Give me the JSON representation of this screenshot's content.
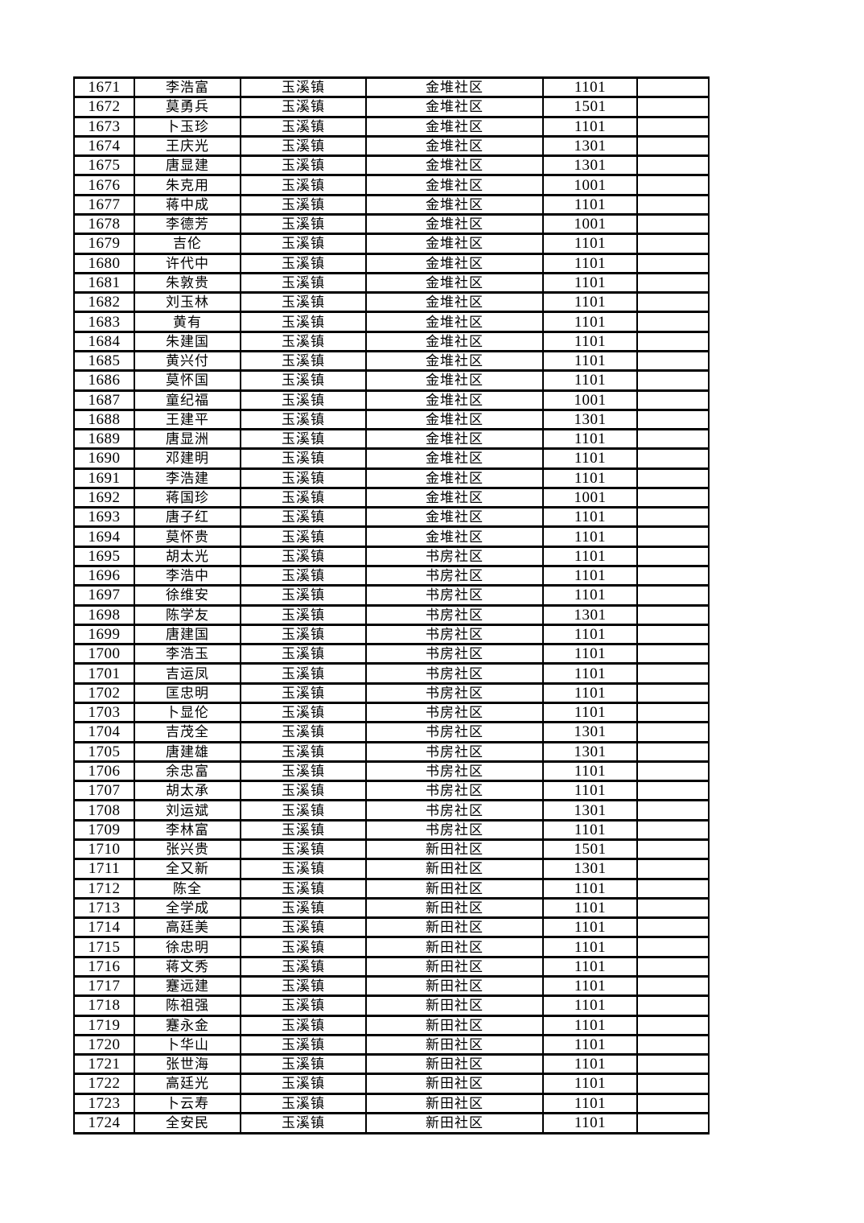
{
  "page": {
    "background_color": "#ffffff",
    "text_color": "#000000"
  },
  "table": {
    "rows": [
      [
        "1671",
        "李浩富",
        "玉溪镇",
        "金堆社区",
        "1101",
        ""
      ],
      [
        "1672",
        "莫勇兵",
        "玉溪镇",
        "金堆社区",
        "1501",
        ""
      ],
      [
        "1673",
        "卜玉珍",
        "玉溪镇",
        "金堆社区",
        "1101",
        ""
      ],
      [
        "1674",
        "王庆光",
        "玉溪镇",
        "金堆社区",
        "1301",
        ""
      ],
      [
        "1675",
        "唐显建",
        "玉溪镇",
        "金堆社区",
        "1301",
        ""
      ],
      [
        "1676",
        "朱克用",
        "玉溪镇",
        "金堆社区",
        "1001",
        ""
      ],
      [
        "1677",
        "蒋中成",
        "玉溪镇",
        "金堆社区",
        "1101",
        ""
      ],
      [
        "1678",
        "李德芳",
        "玉溪镇",
        "金堆社区",
        "1001",
        ""
      ],
      [
        "1679",
        "吉伦",
        "玉溪镇",
        "金堆社区",
        "1101",
        ""
      ],
      [
        "1680",
        "许代中",
        "玉溪镇",
        "金堆社区",
        "1101",
        ""
      ],
      [
        "1681",
        "朱敦贵",
        "玉溪镇",
        "金堆社区",
        "1101",
        ""
      ],
      [
        "1682",
        "刘玉林",
        "玉溪镇",
        "金堆社区",
        "1101",
        ""
      ],
      [
        "1683",
        "黄有",
        "玉溪镇",
        "金堆社区",
        "1101",
        ""
      ],
      [
        "1684",
        "朱建国",
        "玉溪镇",
        "金堆社区",
        "1101",
        ""
      ],
      [
        "1685",
        "黄兴付",
        "玉溪镇",
        "金堆社区",
        "1101",
        ""
      ],
      [
        "1686",
        "莫怀国",
        "玉溪镇",
        "金堆社区",
        "1101",
        ""
      ],
      [
        "1687",
        "童纪福",
        "玉溪镇",
        "金堆社区",
        "1001",
        ""
      ],
      [
        "1688",
        "王建平",
        "玉溪镇",
        "金堆社区",
        "1301",
        ""
      ],
      [
        "1689",
        "唐显洲",
        "玉溪镇",
        "金堆社区",
        "1101",
        ""
      ],
      [
        "1690",
        "邓建明",
        "玉溪镇",
        "金堆社区",
        "1101",
        ""
      ],
      [
        "1691",
        "李浩建",
        "玉溪镇",
        "金堆社区",
        "1101",
        ""
      ],
      [
        "1692",
        "蒋国珍",
        "玉溪镇",
        "金堆社区",
        "1001",
        ""
      ],
      [
        "1693",
        "唐子红",
        "玉溪镇",
        "金堆社区",
        "1101",
        ""
      ],
      [
        "1694",
        "莫怀贵",
        "玉溪镇",
        "金堆社区",
        "1101",
        ""
      ],
      [
        "1695",
        "胡太光",
        "玉溪镇",
        "书房社区",
        "1101",
        ""
      ],
      [
        "1696",
        "李浩中",
        "玉溪镇",
        "书房社区",
        "1101",
        ""
      ],
      [
        "1697",
        "徐维安",
        "玉溪镇",
        "书房社区",
        "1101",
        ""
      ],
      [
        "1698",
        "陈学友",
        "玉溪镇",
        "书房社区",
        "1301",
        ""
      ],
      [
        "1699",
        "唐建国",
        "玉溪镇",
        "书房社区",
        "1101",
        ""
      ],
      [
        "1700",
        "李浩玉",
        "玉溪镇",
        "书房社区",
        "1101",
        ""
      ],
      [
        "1701",
        "吉运凤",
        "玉溪镇",
        "书房社区",
        "1101",
        ""
      ],
      [
        "1702",
        "匡忠明",
        "玉溪镇",
        "书房社区",
        "1101",
        ""
      ],
      [
        "1703",
        "卜显伦",
        "玉溪镇",
        "书房社区",
        "1101",
        ""
      ],
      [
        "1704",
        "吉茂全",
        "玉溪镇",
        "书房社区",
        "1301",
        ""
      ],
      [
        "1705",
        "唐建雄",
        "玉溪镇",
        "书房社区",
        "1301",
        ""
      ],
      [
        "1706",
        "余忠富",
        "玉溪镇",
        "书房社区",
        "1101",
        ""
      ],
      [
        "1707",
        "胡太承",
        "玉溪镇",
        "书房社区",
        "1101",
        ""
      ],
      [
        "1708",
        "刘运斌",
        "玉溪镇",
        "书房社区",
        "1301",
        ""
      ],
      [
        "1709",
        "李林富",
        "玉溪镇",
        "书房社区",
        "1101",
        ""
      ],
      [
        "1710",
        "张兴贵",
        "玉溪镇",
        "新田社区",
        "1501",
        ""
      ],
      [
        "1711",
        "全又新",
        "玉溪镇",
        "新田社区",
        "1301",
        ""
      ],
      [
        "1712",
        "陈全",
        "玉溪镇",
        "新田社区",
        "1101",
        ""
      ],
      [
        "1713",
        "全学成",
        "玉溪镇",
        "新田社区",
        "1101",
        ""
      ],
      [
        "1714",
        "高廷美",
        "玉溪镇",
        "新田社区",
        "1101",
        ""
      ],
      [
        "1715",
        "徐忠明",
        "玉溪镇",
        "新田社区",
        "1101",
        ""
      ],
      [
        "1716",
        "蒋文秀",
        "玉溪镇",
        "新田社区",
        "1101",
        ""
      ],
      [
        "1717",
        "蹇远建",
        "玉溪镇",
        "新田社区",
        "1101",
        ""
      ],
      [
        "1718",
        "陈祖强",
        "玉溪镇",
        "新田社区",
        "1101",
        ""
      ],
      [
        "1719",
        "蹇永金",
        "玉溪镇",
        "新田社区",
        "1101",
        ""
      ],
      [
        "1720",
        "卜华山",
        "玉溪镇",
        "新田社区",
        "1101",
        ""
      ],
      [
        "1721",
        "张世海",
        "玉溪镇",
        "新田社区",
        "1101",
        ""
      ],
      [
        "1722",
        "高廷光",
        "玉溪镇",
        "新田社区",
        "1101",
        ""
      ],
      [
        "1723",
        "卜云寿",
        "玉溪镇",
        "新田社区",
        "1101",
        ""
      ],
      [
        "1724",
        "全安民",
        "玉溪镇",
        "新田社区",
        "1101",
        ""
      ]
    ]
  }
}
